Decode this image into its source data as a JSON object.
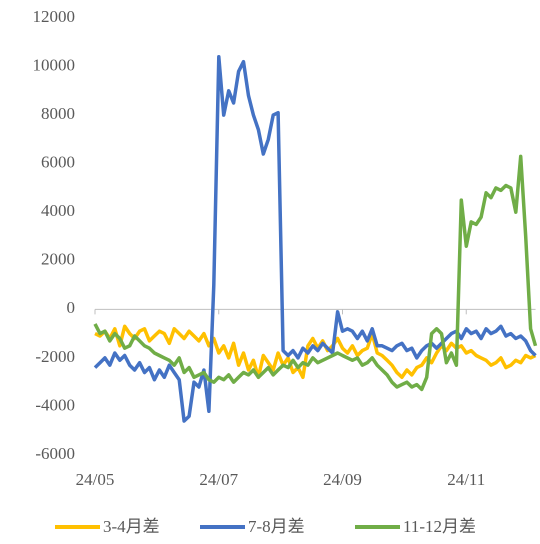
{
  "chart_data": {
    "type": "line",
    "categories": [
      "24/05",
      null,
      null,
      null,
      null,
      null,
      null,
      null,
      null,
      null,
      null,
      null,
      null,
      null,
      null,
      null,
      null,
      null,
      null,
      null,
      null,
      null,
      null,
      null,
      null,
      "24/07",
      null,
      null,
      null,
      null,
      null,
      null,
      null,
      null,
      null,
      null,
      null,
      null,
      null,
      null,
      null,
      null,
      null,
      null,
      null,
      null,
      null,
      null,
      null,
      null,
      "24/09",
      null,
      null,
      null,
      null,
      null,
      null,
      null,
      null,
      null,
      null,
      null,
      null,
      null,
      null,
      null,
      null,
      null,
      null,
      null,
      null,
      null,
      null,
      null,
      null,
      "24/11",
      null,
      null,
      null,
      null,
      null,
      null,
      null,
      null,
      null,
      null,
      null,
      null,
      null,
      null
    ],
    "series": [
      {
        "name": "3-4月差",
        "color": "#ffc000",
        "values": [
          -1000,
          -1100,
          -900,
          -1200,
          -800,
          -1500,
          -700,
          -1000,
          -1200,
          -900,
          -800,
          -1300,
          -1100,
          -900,
          -1000,
          -1400,
          -800,
          -1000,
          -1200,
          -900,
          -1100,
          -1300,
          -1000,
          -1500,
          -1200,
          -1800,
          -1500,
          -2000,
          -1400,
          -2300,
          -1800,
          -2500,
          -2100,
          -2800,
          -1900,
          -2200,
          -2500,
          -1800,
          -2300,
          -2000,
          -2600,
          -2400,
          -2800,
          -1500,
          -1200,
          -1600,
          -1300,
          -1700,
          -1500,
          -1200,
          -1600,
          -1800,
          -1500,
          -1900,
          -1700,
          -1600,
          -1000,
          -1800,
          -1900,
          -2100,
          -2300,
          -2600,
          -2800,
          -2500,
          -2700,
          -2400,
          -2300,
          -2000,
          -2200,
          -1800,
          -1500,
          -1700,
          -1400,
          -1600,
          -1500,
          -1800,
          -1700,
          -1900,
          -2000,
          -2100,
          -2300,
          -2200,
          -2000,
          -2400,
          -2300,
          -2100,
          -2200,
          -1900,
          -2000,
          -1900
        ]
      },
      {
        "name": "7-8月差",
        "color": "#4472c4",
        "values": [
          -2400,
          -2200,
          -2000,
          -2300,
          -1800,
          -2100,
          -1900,
          -2300,
          -2500,
          -2200,
          -2600,
          -2400,
          -2900,
          -2500,
          -2800,
          -2300,
          -2600,
          -2900,
          -4600,
          -4400,
          -3000,
          -3200,
          -2500,
          -4200,
          1000,
          10400,
          8000,
          9000,
          8500,
          9800,
          10200,
          8800,
          8000,
          7400,
          6400,
          7000,
          8000,
          8100,
          -1700,
          -1900,
          -1700,
          -2000,
          -1600,
          -1800,
          -1500,
          -1700,
          -1400,
          -1600,
          -1800,
          -100,
          -900,
          -800,
          -900,
          -1200,
          -900,
          -1300,
          -800,
          -1500,
          -1500,
          -1600,
          -1700,
          -1500,
          -1400,
          -1700,
          -1600,
          -2000,
          -1700,
          -1500,
          -1400,
          -1600,
          -1400,
          -1200,
          -1000,
          -900,
          -1200,
          -800,
          -1000,
          -900,
          -1200,
          -800,
          -1000,
          -900,
          -700,
          -1100,
          -1000,
          -1200,
          -1100,
          -1300,
          -1700,
          -1900
        ]
      },
      {
        "name": "11-12月差",
        "color": "#70ad47",
        "values": [
          -600,
          -1000,
          -900,
          -1300,
          -1000,
          -1200,
          -1600,
          -1500,
          -1100,
          -1300,
          -1500,
          -1600,
          -1800,
          -1900,
          -2000,
          -2100,
          -2300,
          -2000,
          -2600,
          -2400,
          -2800,
          -2700,
          -2600,
          -2900,
          -3000,
          -2800,
          -2900,
          -2700,
          -3000,
          -2800,
          -2600,
          -2700,
          -2500,
          -2800,
          -2600,
          -2400,
          -2700,
          -2500,
          -2300,
          -2400,
          -2100,
          -2400,
          -2200,
          -2300,
          -2000,
          -2200,
          -2100,
          -2000,
          -1900,
          -1800,
          -1900,
          -2000,
          -2100,
          -2000,
          -2300,
          -2200,
          -2000,
          -2300,
          -2500,
          -2700,
          -3000,
          -3200,
          -3100,
          -3000,
          -3200,
          -3100,
          -3300,
          -2800,
          -1000,
          -800,
          -1000,
          -2200,
          -1800,
          -2300,
          4500,
          2600,
          3600,
          3500,
          3800,
          4800,
          4600,
          5000,
          4900,
          5100,
          5000,
          4000,
          6300,
          3000,
          -800,
          -1500
        ]
      }
    ],
    "ylim": [
      -6000,
      12000
    ],
    "yticks": [
      -6000,
      -4000,
      -2000,
      0,
      2000,
      4000,
      6000,
      8000,
      10000,
      12000
    ]
  }
}
